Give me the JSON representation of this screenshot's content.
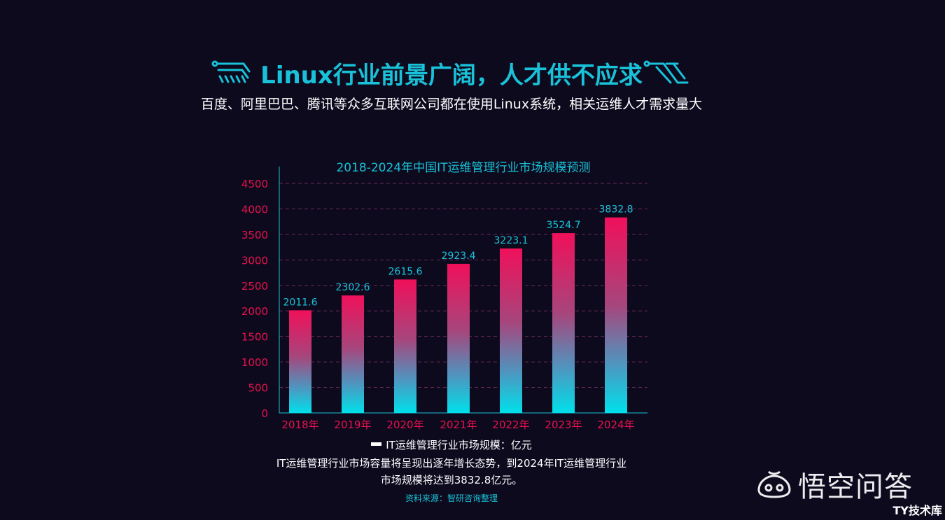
{
  "headline": "Linux行业前景广阔，人才供不应求",
  "subtitle": "百度、阿里巴巴、腾讯等众多互联网公司都在使用Linux系统，相关运维人才需求量大",
  "chart_data": {
    "type": "bar",
    "title": "2018-2024年中国IT运维管理行业市场规模预测",
    "categories": [
      "2018年",
      "2019年",
      "2020年",
      "2021年",
      "2022年",
      "2023年",
      "2024年"
    ],
    "series": [
      {
        "name": "IT运维管理行业市场规模：亿元",
        "values": [
          2011.6,
          2302.6,
          2615.6,
          2923.4,
          3223.1,
          3524.7,
          3832.8
        ]
      }
    ],
    "value_labels": [
      "2011.6",
      "2302.6",
      "2615.6",
      "2923.4",
      "3223.1",
      "3524.7",
      "3832.8"
    ],
    "y_ticks": [
      0,
      500,
      1000,
      1500,
      2000,
      2500,
      3000,
      3500,
      4000,
      4500
    ],
    "ylim": [
      0,
      4500
    ],
    "grid": "dashed horizontal",
    "legend_position": "bottom"
  },
  "note_lines": [
    "IT运维管理行业市场容量将呈现出逐年增长态势，到2024年IT运维管理行业",
    "市场规模将达到3832.8亿元。"
  ],
  "source": "资料来源：智研咨询整理",
  "watermark": "悟空问答",
  "corner_mark": "TY技术库",
  "colors": {
    "background": "#0d0a1e",
    "accent": "#19c2d8",
    "bar_top": "#f0105a",
    "bar_bottom": "#00e0ea",
    "tick_label": "#e8114e",
    "grid_line": "#6a2a55"
  },
  "icons": [
    "circuit-left-icon",
    "circuit-right-icon",
    "wukong-logo-icon"
  ]
}
